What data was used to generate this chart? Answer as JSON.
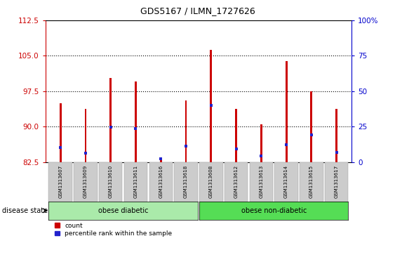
{
  "title": "GDS5167 / ILMN_1727626",
  "samples": [
    "GSM1313607",
    "GSM1313609",
    "GSM1313610",
    "GSM1313611",
    "GSM1313616",
    "GSM1313618",
    "GSM1313608",
    "GSM1313612",
    "GSM1313613",
    "GSM1313614",
    "GSM1313615",
    "GSM1313617"
  ],
  "count_values": [
    95.0,
    93.8,
    100.3,
    99.5,
    83.5,
    95.5,
    106.2,
    93.8,
    90.5,
    103.8,
    97.5,
    93.8
  ],
  "percentile_values": [
    85.5,
    84.3,
    89.8,
    89.5,
    83.2,
    85.8,
    94.5,
    85.2,
    83.8,
    86.2,
    88.2,
    84.5
  ],
  "ymin": 82.5,
  "ymax": 112.5,
  "yticks": [
    82.5,
    90.0,
    97.5,
    105.0,
    112.5
  ],
  "right_yticks": [
    0,
    25,
    50,
    75,
    100
  ],
  "bar_color": "#cc0000",
  "percentile_color": "#2222cc",
  "group1_label": "obese diabetic",
  "group2_label": "obese non-diabetic",
  "group1_color": "#aaeaaa",
  "group2_color": "#55dd55",
  "group1_count": 6,
  "disease_state_label": "disease state",
  "bar_width": 0.08,
  "bg_color": "#ffffff",
  "axis_left_color": "#cc0000",
  "axis_right_color": "#0000cc",
  "tick_label_bg": "#cccccc",
  "gridline_color": "#000000",
  "blue_marker_size": 4
}
